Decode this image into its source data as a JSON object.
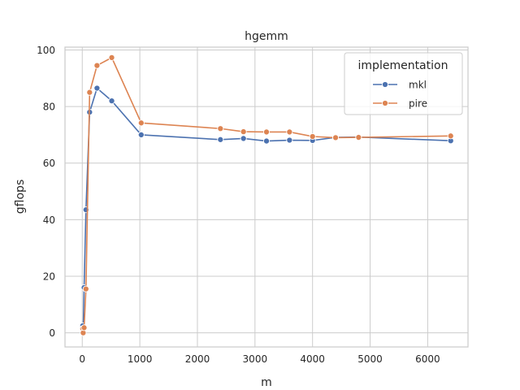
{
  "chart_data": {
    "type": "line",
    "title": "hgemm",
    "xlabel": "m",
    "ylabel": "gflops",
    "xlim": [
      -300,
      6700
    ],
    "ylim": [
      -5,
      101
    ],
    "xticks": [
      0,
      1000,
      2000,
      3000,
      4000,
      5000,
      6000
    ],
    "yticks": [
      0,
      20,
      40,
      60,
      80,
      100
    ],
    "grid": true,
    "legend": {
      "title": "implementation",
      "placement": "top-right"
    },
    "series": [
      {
        "name": "mkl",
        "color": "#4c72b0",
        "x": [
          8,
          16,
          32,
          64,
          128,
          256,
          512,
          1024,
          2400,
          2800,
          3200,
          3600,
          4000,
          4400,
          4800,
          6400
        ],
        "y": [
          2.5,
          0.5,
          16,
          43.5,
          78,
          86.5,
          82,
          70,
          68.3,
          68.7,
          67.8,
          68.1,
          68.0,
          69.1,
          69.2,
          67.9
        ]
      },
      {
        "name": "pire",
        "color": "#dd8452",
        "x": [
          8,
          16,
          32,
          64,
          128,
          256,
          512,
          1024,
          2400,
          2800,
          3200,
          3600,
          4000,
          4400,
          4800,
          6400
        ],
        "y": [
          1.5,
          0,
          1.8,
          15.5,
          85,
          94.5,
          97.3,
          74.2,
          72.2,
          71.1,
          71.0,
          71.0,
          69.4,
          69.0,
          69.1,
          69.6
        ]
      }
    ]
  }
}
